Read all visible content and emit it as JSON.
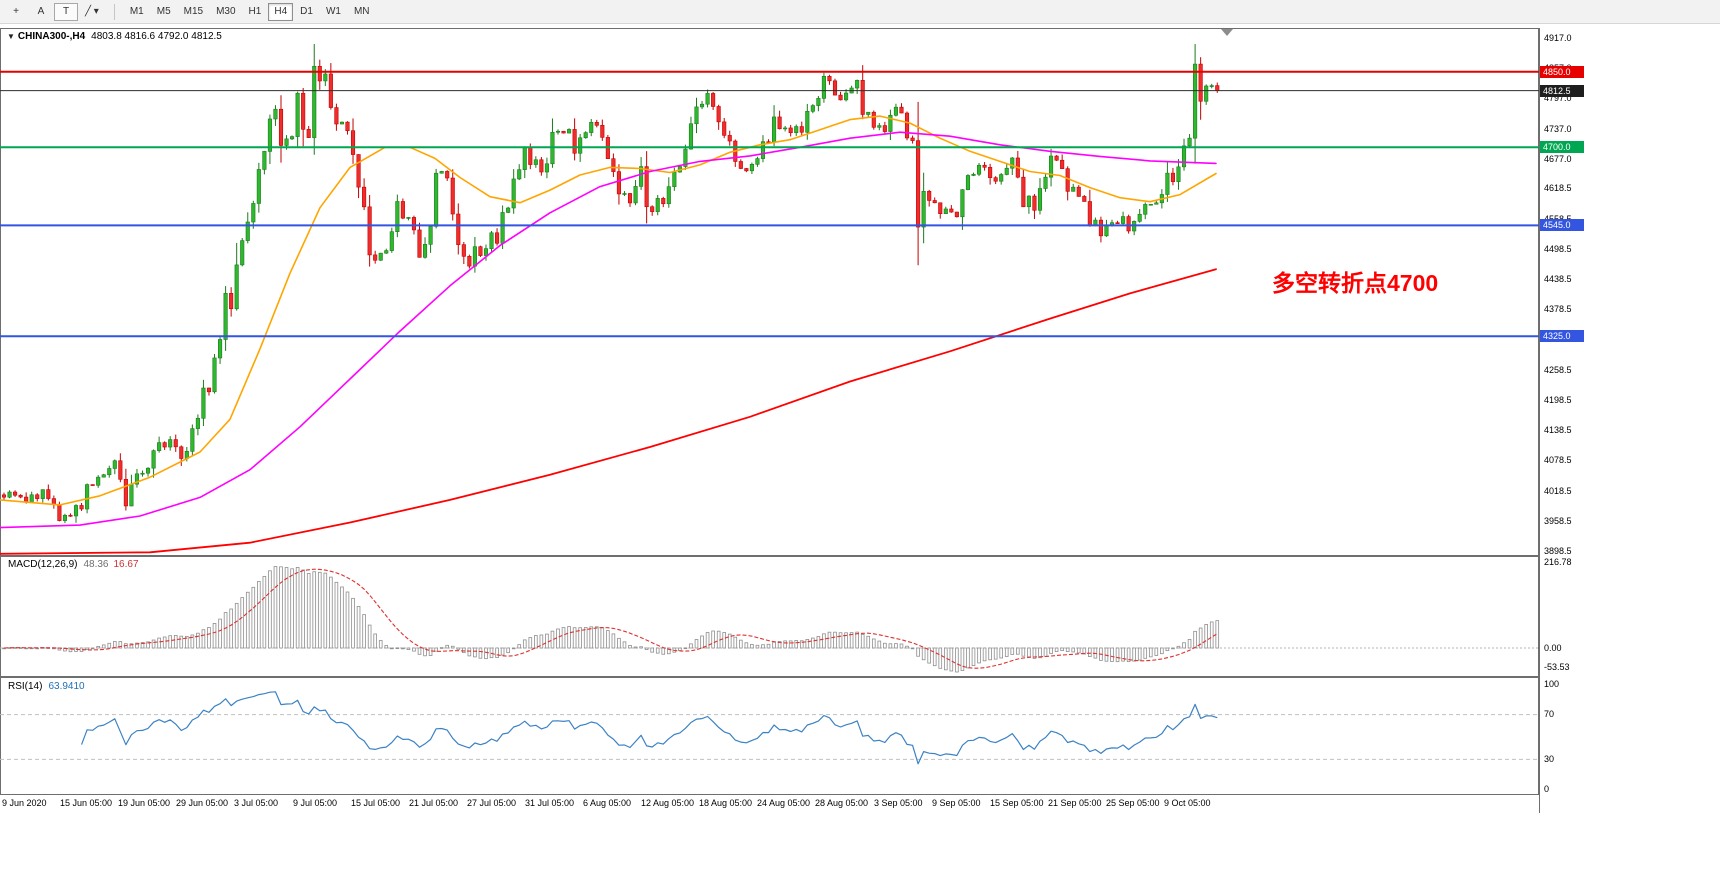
{
  "toolbar": {
    "tools": [
      {
        "id": "crosshair",
        "glyph": "+"
      },
      {
        "id": "text-label",
        "glyph": "A"
      },
      {
        "id": "text-box",
        "glyph": "T",
        "framed": true
      },
      {
        "id": "draw-shapes",
        "glyph": "╱",
        "caret": "▾"
      }
    ],
    "timeframes": [
      "M1",
      "M5",
      "M15",
      "M30",
      "H1",
      "H4",
      "D1",
      "W1",
      "MN"
    ],
    "active_timeframe": "H4"
  },
  "chart": {
    "symbol_period": "CHINA300-,H4",
    "ohlc": "4803.8 4816.6 4792.0 4812.5",
    "annotation_text": "多空转折点4700",
    "annotation_color": "#FF0000"
  },
  "price_axis": {
    "labels": [
      "4917.0",
      "4857.0",
      "4797.0",
      "4737.0",
      "4677.0",
      "4618.5",
      "4558.5",
      "4498.5",
      "4438.5",
      "4378.5",
      "4318.5",
      "4258.5",
      "4198.5",
      "4138.5",
      "4078.5",
      "4018.5",
      "3958.5",
      "3898.5"
    ],
    "badges": [
      {
        "value": "4850.0",
        "price": 4850.0,
        "bg": "#E60000"
      },
      {
        "value": "4812.5",
        "price": 4812.5,
        "bg": "#1E1E1E"
      },
      {
        "value": "4700.0",
        "price": 4700.0,
        "bg": "#00A651"
      },
      {
        "value": "4545.0",
        "price": 4545.0,
        "bg": "#3355E0"
      },
      {
        "value": "4325.0",
        "price": 4325.0,
        "bg": "#3355E0"
      }
    ]
  },
  "time_axis": {
    "labels": [
      "9 Jun 2020",
      "15 Jun 05:00",
      "19 Jun 05:00",
      "29 Jun 05:00",
      "3 Jul 05:00",
      "9 Jul 05:00",
      "15 Jul 05:00",
      "21 Jul 05:00",
      "27 Jul 05:00",
      "31 Jul 05:00",
      "6 Aug 05:00",
      "12 Aug 05:00",
      "18 Aug 05:00",
      "24 Aug 05:00",
      "28 Aug 05:00",
      "3 Sep 05:00",
      "9 Sep 05:00",
      "15 Sep 05:00",
      "21 Sep 05:00",
      "25 Sep 05:00",
      "9 Oct 05:00"
    ]
  },
  "chart_data": {
    "type": "candlestick",
    "title": "CHINA300-,H4",
    "ylim": [
      3898.5,
      4917.0
    ],
    "bars": 220,
    "up_color": "#2EB82E",
    "up_border": "#1C7A1C",
    "down_color": "#EF2D2D",
    "down_border": "#C40000",
    "close_anchors": [
      [
        0,
        4010
      ],
      [
        4,
        4000
      ],
      [
        7,
        4015
      ],
      [
        10,
        3960
      ],
      [
        14,
        3990
      ],
      [
        17,
        4050
      ],
      [
        20,
        4070
      ],
      [
        22,
        4000
      ],
      [
        25,
        4060
      ],
      [
        29,
        4120
      ],
      [
        32,
        4090
      ],
      [
        35,
        4180
      ],
      [
        38,
        4270
      ],
      [
        41,
        4430
      ],
      [
        44,
        4580
      ],
      [
        46,
        4680
      ],
      [
        47,
        4760
      ],
      [
        49,
        4780
      ],
      [
        51,
        4700
      ],
      [
        53,
        4780
      ],
      [
        55,
        4730
      ],
      [
        56,
        4800
      ],
      [
        58,
        4845
      ],
      [
        60,
        4760
      ],
      [
        63,
        4690
      ],
      [
        64,
        4610
      ],
      [
        66,
        4520
      ],
      [
        68,
        4465
      ],
      [
        71,
        4580
      ],
      [
        73,
        4550
      ],
      [
        75,
        4505
      ],
      [
        77,
        4570
      ],
      [
        79,
        4665
      ],
      [
        81,
        4540
      ],
      [
        83,
        4465
      ],
      [
        85,
        4505
      ],
      [
        87,
        4485
      ],
      [
        90,
        4560
      ],
      [
        92,
        4645
      ],
      [
        94,
        4680
      ],
      [
        97,
        4655
      ],
      [
        99,
        4720
      ],
      [
        101,
        4740
      ],
      [
        103,
        4695
      ],
      [
        106,
        4740
      ],
      [
        109,
        4685
      ],
      [
        111,
        4635
      ],
      [
        113,
        4600
      ],
      [
        115,
        4645
      ],
      [
        117,
        4560
      ],
      [
        119,
        4605
      ],
      [
        121,
        4655
      ],
      [
        123,
        4705
      ],
      [
        125,
        4780
      ],
      [
        127,
        4805
      ],
      [
        129,
        4740
      ],
      [
        131,
        4690
      ],
      [
        134,
        4660
      ],
      [
        137,
        4705
      ],
      [
        139,
        4740
      ],
      [
        142,
        4720
      ],
      [
        145,
        4755
      ],
      [
        147,
        4785
      ],
      [
        149,
        4850
      ],
      [
        151,
        4800
      ],
      [
        154,
        4825
      ],
      [
        156,
        4760
      ],
      [
        158,
        4735
      ],
      [
        161,
        4780
      ],
      [
        164,
        4720
      ],
      [
        165,
        4620
      ],
      [
        168,
        4585
      ],
      [
        171,
        4560
      ],
      [
        174,
        4625
      ],
      [
        176,
        4660
      ],
      [
        179,
        4640
      ],
      [
        182,
        4680
      ],
      [
        184,
        4600
      ],
      [
        186,
        4560
      ],
      [
        188,
        4680
      ],
      [
        191,
        4660
      ],
      [
        193,
        4615
      ],
      [
        196,
        4560
      ],
      [
        198,
        4530
      ],
      [
        201,
        4560
      ],
      [
        203,
        4545
      ],
      [
        206,
        4580
      ],
      [
        209,
        4605
      ],
      [
        211,
        4645
      ],
      [
        214,
        4700
      ],
      [
        215,
        4795
      ],
      [
        217,
        4820
      ],
      [
        219,
        4812.5
      ]
    ],
    "levels": [
      {
        "price": 4850.0,
        "color": "#E60000",
        "width": 2,
        "name": "resistance-4850"
      },
      {
        "price": 4700.0,
        "color": "#00A651",
        "width": 2,
        "name": "pivot-4700"
      },
      {
        "price": 4545.0,
        "color": "#3355E0",
        "width": 2,
        "name": "support-4545"
      },
      {
        "price": 4325.0,
        "color": "#3355E0",
        "width": 2,
        "name": "support-4325"
      },
      {
        "price": 4812.5,
        "color": "#2E2E2E",
        "width": 1,
        "name": "current-price-line"
      }
    ],
    "moving_averages": [
      {
        "name": "ma-fast",
        "color": "#FFA500",
        "width": 1.6,
        "points": [
          [
            0,
            4000
          ],
          [
            60,
            3990
          ],
          [
            100,
            4008
          ],
          [
            150,
            4045
          ],
          [
            200,
            4095
          ],
          [
            230,
            4160
          ],
          [
            260,
            4300
          ],
          [
            290,
            4450
          ],
          [
            320,
            4580
          ],
          [
            350,
            4660
          ],
          [
            385,
            4700
          ],
          [
            410,
            4700
          ],
          [
            435,
            4678
          ],
          [
            460,
            4640
          ],
          [
            490,
            4602
          ],
          [
            520,
            4590
          ],
          [
            550,
            4615
          ],
          [
            580,
            4645
          ],
          [
            610,
            4660
          ],
          [
            640,
            4658
          ],
          [
            670,
            4650
          ],
          [
            700,
            4665
          ],
          [
            730,
            4690
          ],
          [
            760,
            4705
          ],
          [
            790,
            4715
          ],
          [
            820,
            4735
          ],
          [
            850,
            4755
          ],
          [
            880,
            4762
          ],
          [
            910,
            4748
          ],
          [
            940,
            4718
          ],
          [
            970,
            4692
          ],
          [
            1000,
            4672
          ],
          [
            1030,
            4652
          ],
          [
            1060,
            4644
          ],
          [
            1090,
            4620
          ],
          [
            1120,
            4600
          ],
          [
            1150,
            4592
          ],
          [
            1180,
            4606
          ],
          [
            1216,
            4648
          ]
        ]
      },
      {
        "name": "ma-medium",
        "color": "#FF00FF",
        "width": 1.6,
        "points": [
          [
            0,
            3945
          ],
          [
            80,
            3950
          ],
          [
            140,
            3968
          ],
          [
            200,
            4005
          ],
          [
            250,
            4060
          ],
          [
            300,
            4145
          ],
          [
            350,
            4240
          ],
          [
            400,
            4335
          ],
          [
            450,
            4425
          ],
          [
            500,
            4505
          ],
          [
            550,
            4570
          ],
          [
            600,
            4622
          ],
          [
            650,
            4652
          ],
          [
            700,
            4672
          ],
          [
            750,
            4683
          ],
          [
            800,
            4700
          ],
          [
            850,
            4718
          ],
          [
            900,
            4730
          ],
          [
            950,
            4722
          ],
          [
            1000,
            4705
          ],
          [
            1050,
            4692
          ],
          [
            1100,
            4682
          ],
          [
            1150,
            4673
          ],
          [
            1216,
            4668
          ]
        ]
      },
      {
        "name": "ma-slow",
        "color": "#FF0000",
        "width": 1.8,
        "points": [
          [
            0,
            3893
          ],
          [
            150,
            3896
          ],
          [
            250,
            3915
          ],
          [
            350,
            3955
          ],
          [
            450,
            4000
          ],
          [
            550,
            4050
          ],
          [
            650,
            4105
          ],
          [
            750,
            4165
          ],
          [
            850,
            4235
          ],
          [
            950,
            4295
          ],
          [
            1050,
            4360
          ],
          [
            1130,
            4410
          ],
          [
            1216,
            4458
          ]
        ]
      }
    ],
    "macd": {
      "label": "MACD(12,26,9)",
      "value_main": "48.36",
      "value_signal": "16.67",
      "fast": 12,
      "slow": 26,
      "signal": 9,
      "axis_labels": [
        "216.78",
        "0.00",
        "-53.53"
      ],
      "histogram_color": "#8f8f8f",
      "signal_color": "#E03030"
    },
    "rsi": {
      "label": "RSI(14)",
      "value": "63.9410",
      "period": 14,
      "levels": [
        70,
        30
      ],
      "axis_labels": [
        "100",
        "70",
        "30",
        "0"
      ],
      "color": "#3B82C4"
    }
  }
}
